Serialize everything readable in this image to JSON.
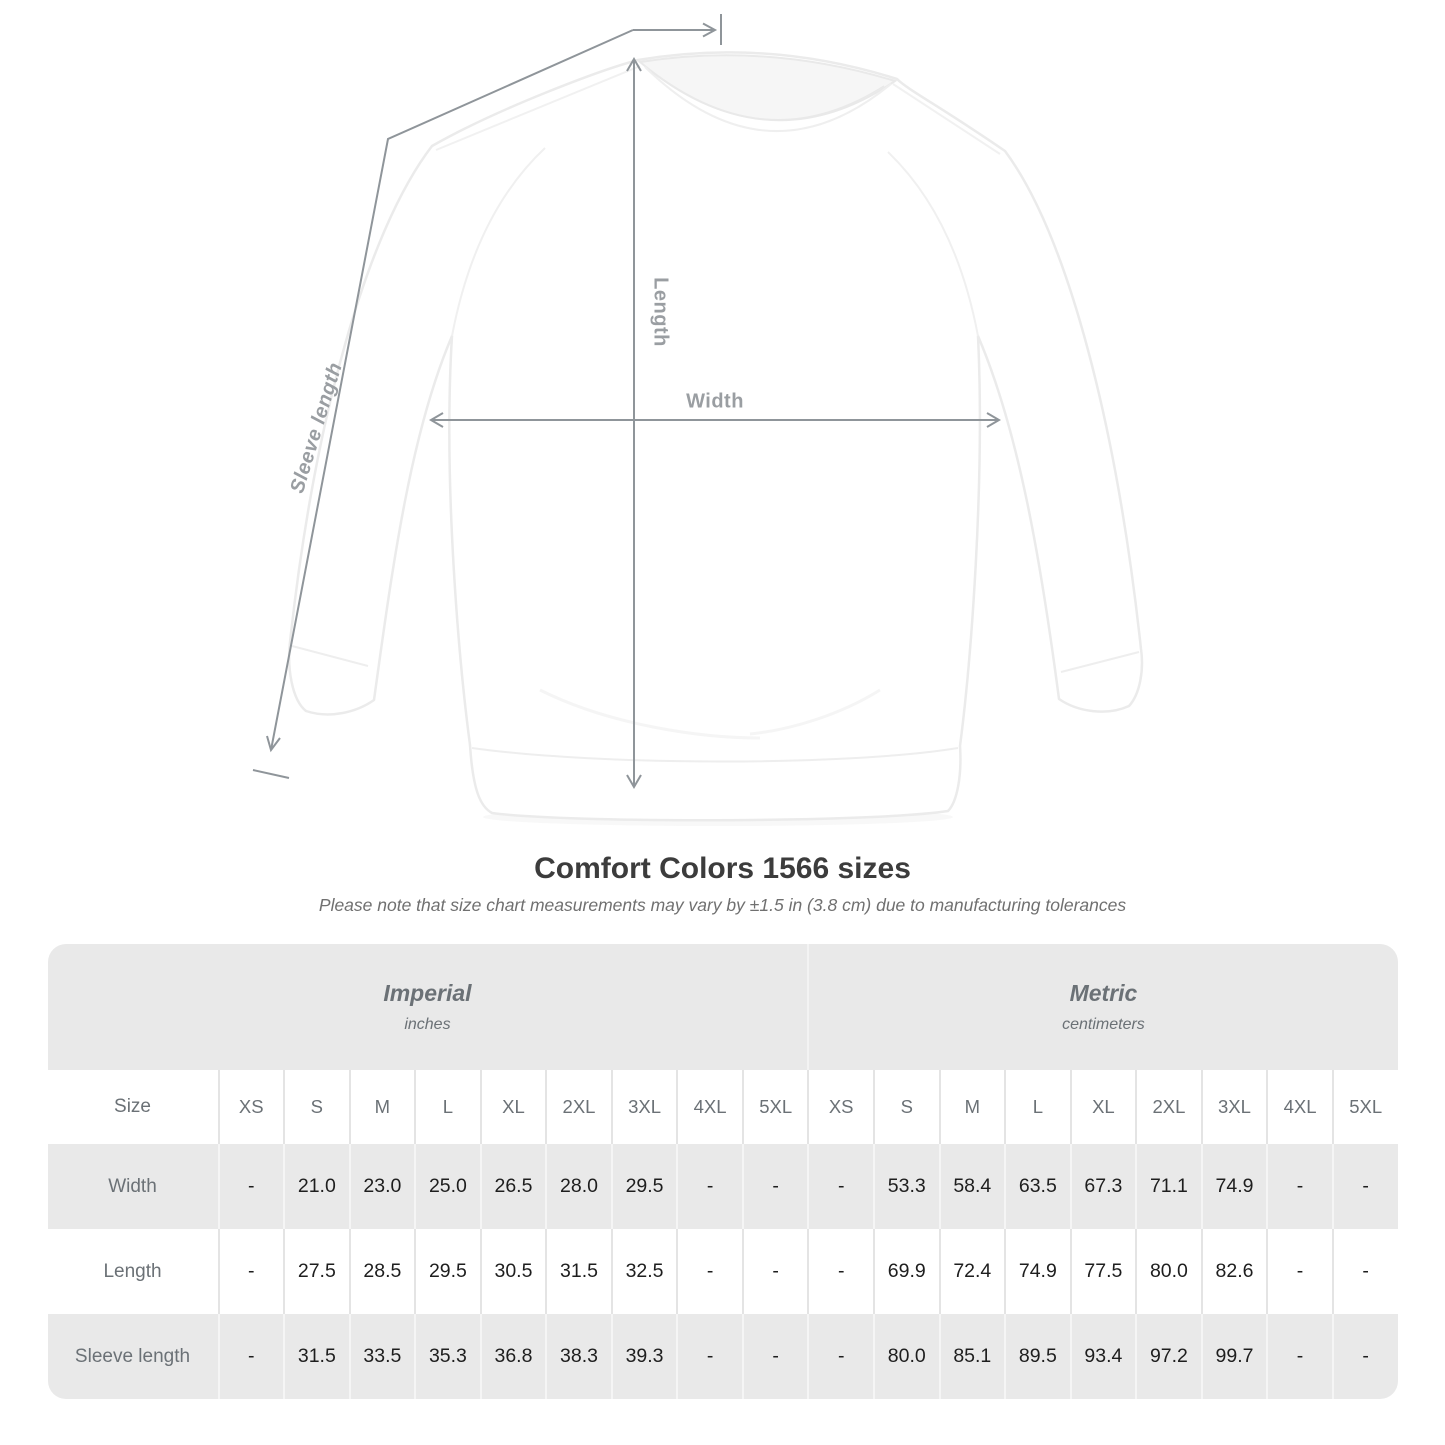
{
  "title": "Comfort Colors 1566 sizes",
  "subtitle": "Please note that size chart measurements may vary by ±1.5 in (3.8 cm) due to manufacturing tolerances",
  "diagram": {
    "width_label": "Width",
    "length_label": "Length",
    "sleeve_length_label": "Sleeve length"
  },
  "colors": {
    "row_stripe": "#e9e9e9",
    "muted_text": "#6b7176",
    "value_text": "#1e1e1e",
    "measure_line": "#8f959a",
    "measure_label": "#9a9ea2"
  },
  "chart_data": {
    "type": "table",
    "title": "Comfort Colors 1566 sizes",
    "note": "Please note that size chart measurements may vary by ±1.5 in (3.8 cm) due to manufacturing tolerances",
    "column_groups": [
      {
        "label": "Imperial",
        "sublabel": "inches",
        "span": 10
      },
      {
        "label": "Metric",
        "sublabel": "centimeters",
        "span": 9
      }
    ],
    "corner_header": "Size",
    "columns": [
      "Size",
      "XS",
      "S",
      "M",
      "L",
      "XL",
      "2XL",
      "3XL",
      "4XL",
      "5XL",
      "XS",
      "S",
      "M",
      "L",
      "XL",
      "2XL",
      "3XL",
      "4XL",
      "5XL"
    ],
    "rows": [
      [
        "Width",
        "-",
        "21.0",
        "23.0",
        "25.0",
        "26.5",
        "28.0",
        "29.5",
        "-",
        "-",
        "-",
        "53.3",
        "58.4",
        "63.5",
        "67.3",
        "71.1",
        "74.9",
        "-",
        "-"
      ],
      [
        "Length",
        "-",
        "27.5",
        "28.5",
        "29.5",
        "30.5",
        "31.5",
        "32.5",
        "-",
        "-",
        "-",
        "69.9",
        "72.4",
        "74.9",
        "77.5",
        "80.0",
        "82.6",
        "-",
        "-"
      ],
      [
        "Sleeve length",
        "-",
        "31.5",
        "33.5",
        "35.3",
        "36.8",
        "38.3",
        "39.3",
        "-",
        "-",
        "-",
        "80.0",
        "85.1",
        "89.5",
        "93.4",
        "97.2",
        "99.7",
        "-",
        "-"
      ]
    ]
  }
}
